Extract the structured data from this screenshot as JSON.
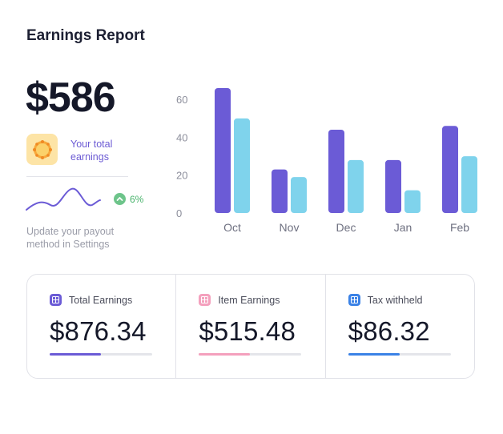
{
  "header": {
    "title": "Earnings Report"
  },
  "summary": {
    "amount": "$586",
    "earnings_label": "Your total earnings",
    "growth": "6%",
    "hint": "Update your payout method in Settings",
    "badge_icon": "sun-badge-icon",
    "growth_icon": "chevron-up-icon"
  },
  "colors": {
    "purple": "#6b5bd6",
    "cyan": "#7fd3ec",
    "pink": "#f4a0bd",
    "blue": "#3b82e6",
    "green": "#6dc48a"
  },
  "chart_data": {
    "type": "bar",
    "categories": [
      "Oct",
      "Nov",
      "Dec",
      "Jan",
      "Feb"
    ],
    "series": [
      {
        "values": [
          66,
          23,
          44,
          28,
          46
        ]
      },
      {
        "values": [
          50,
          19,
          28,
          12,
          30
        ]
      }
    ],
    "y_ticks": [
      "0",
      "20",
      "40",
      "60"
    ],
    "ylim": [
      0,
      66
    ],
    "grid": false
  },
  "cards": [
    {
      "label": "Total Earnings",
      "value": "$876.34",
      "progress": 0.5,
      "color": "#6b5bd6"
    },
    {
      "label": "Item Earnings",
      "value": "$515.48",
      "progress": 0.5,
      "color": "#f4a0bd"
    },
    {
      "label": "Tax withheld",
      "value": "$86.32",
      "progress": 0.5,
      "color": "#3b82e6"
    }
  ]
}
